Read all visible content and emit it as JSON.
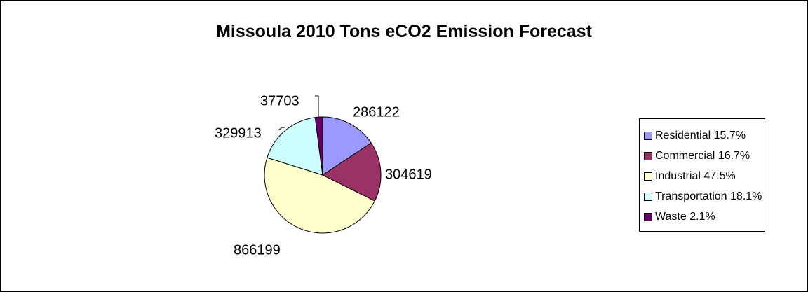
{
  "chart_data": {
    "type": "pie",
    "title": "Missoula 2010 Tons eCO2 Emission Forecast",
    "legend_position": "right",
    "slices": [
      {
        "name": "Residential",
        "value": 286122,
        "legend_label": "Residential 15.7%",
        "color": "#9999FF"
      },
      {
        "name": "Commercial",
        "value": 304619,
        "legend_label": "Commercial 16.7%",
        "color": "#993366"
      },
      {
        "name": "Industrial",
        "value": 866199,
        "legend_label": "Industrial 47.5%",
        "color": "#FFFFCC"
      },
      {
        "name": "Transportation",
        "value": 329913,
        "legend_label": "Transportation 18.1%",
        "color": "#CCFFFF"
      },
      {
        "name": "Waste",
        "value": 37703,
        "legend_label": "Waste 2.1%",
        "color": "#660066"
      }
    ]
  }
}
